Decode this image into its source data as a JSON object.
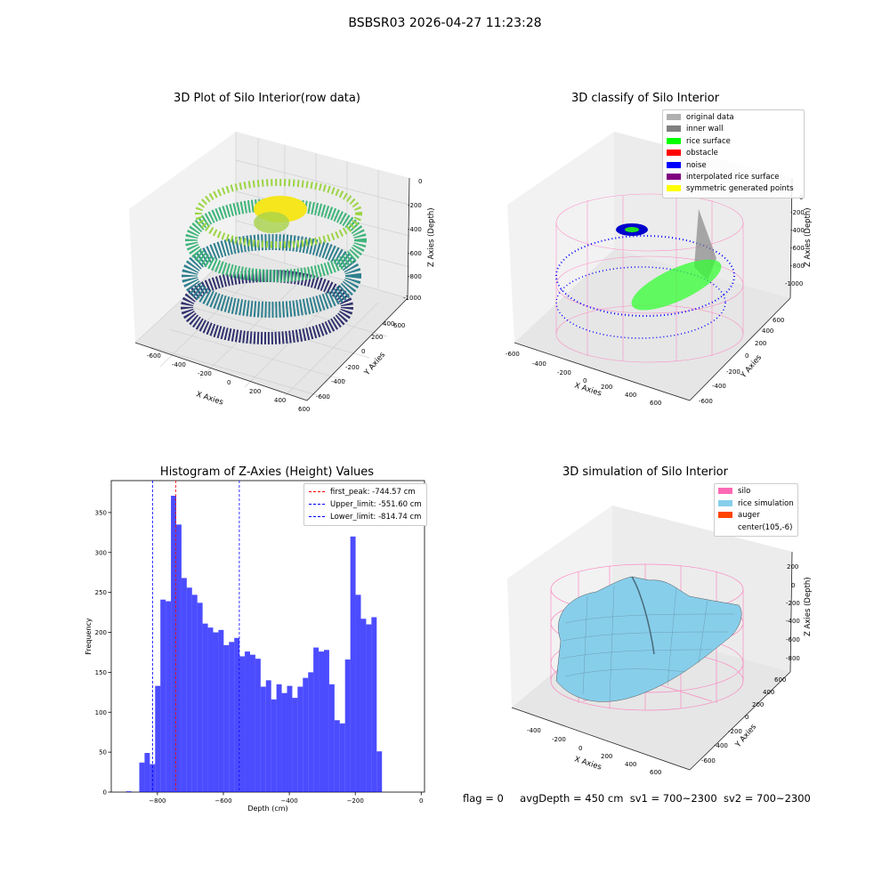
{
  "suptitle": "BSBSR03 2026-04-27 11:23:28",
  "panels": {
    "raw": {
      "title": "3D Plot of Silo Interior(row data)",
      "xlabel": "X Axies",
      "ylabel": "Y Axies",
      "zlabel": "Z Axies (Depth)",
      "xticks": [
        "-600",
        "-400",
        "-200",
        "0",
        "200",
        "400",
        "600"
      ],
      "yticks": [
        "-600",
        "-400",
        "-200",
        "0",
        "200",
        "400",
        "600"
      ],
      "zticks": [
        "0",
        "-200",
        "-400",
        "-600",
        "-800",
        "-1000"
      ]
    },
    "classify": {
      "title": "3D classify of Silo Interior",
      "xlabel": "X Axies",
      "ylabel": "Y Axies",
      "zlabel": "Z Axies (Depth)",
      "xticks": [
        "-600",
        "-400",
        "-200",
        "0",
        "200",
        "400",
        "600"
      ],
      "yticks": [
        "-600",
        "-400",
        "-200",
        "0",
        "200",
        "400",
        "600"
      ],
      "zticks": [
        "0",
        "-200",
        "-400",
        "-600",
        "-800",
        "-1000"
      ],
      "legend": [
        {
          "label": "original data",
          "color": "#b0b0b0"
        },
        {
          "label": "inner wall",
          "color": "#808080"
        },
        {
          "label": "rice surface",
          "color": "#00ff00"
        },
        {
          "label": "obstacle",
          "color": "#ff0000"
        },
        {
          "label": "noise",
          "color": "#0000ff"
        },
        {
          "label": "interpolated rice surface",
          "color": "#800080"
        },
        {
          "label": "symmetric generated points",
          "color": "#ffff00"
        }
      ]
    },
    "simulation": {
      "title": "3D simulation of Silo Interior",
      "xlabel": "X Axies",
      "ylabel": "Y Axies",
      "zlabel": "Z Axies (Depth)",
      "xticks": [
        "-400",
        "-200",
        "0",
        "200",
        "400",
        "600"
      ],
      "yticks": [
        "-600",
        "-400",
        "-200",
        "0",
        "200",
        "400",
        "600"
      ],
      "zticks": [
        "200",
        "0",
        "-200",
        "-400",
        "-600",
        "-800"
      ],
      "legend": [
        {
          "label": "silo",
          "color": "#ff69b4"
        },
        {
          "label": "rice simulation",
          "color": "#87ceeb"
        },
        {
          "label": "auger",
          "color": "#ff4500"
        },
        {
          "label": "center(105,-6)",
          "color": "#ffffff"
        }
      ]
    }
  },
  "chart_data": {
    "type": "bar",
    "title": "Histogram of Z-Axies (Height) Values",
    "xlabel": "Depth (cm)",
    "ylabel": "Frequency",
    "xlim": [
      -940,
      10
    ],
    "ylim": [
      0,
      390
    ],
    "bar_color": "#0000ff",
    "bin_width": 16,
    "bin_starts": [
      -855,
      -839,
      -823,
      -807,
      -791,
      -775,
      -759,
      -743,
      -727,
      -711,
      -695,
      -679,
      -663,
      -647,
      -631,
      -615,
      -599,
      -583,
      -567,
      -551,
      -535,
      -519,
      -503,
      -487,
      -471,
      -455,
      -439,
      -423,
      -407,
      -391,
      -375,
      -359,
      -343,
      -327,
      -311,
      -295,
      -279,
      -263,
      -247,
      -231,
      -215,
      -199,
      -183,
      -167,
      -151,
      -135,
      -119,
      -103,
      -87,
      -71,
      -55,
      -39
    ],
    "values": [
      37,
      49,
      35,
      133,
      241,
      239,
      371,
      335,
      268,
      256,
      247,
      237,
      211,
      206,
      200,
      203,
      184,
      188,
      193,
      170,
      176,
      172,
      167,
      132,
      140,
      116,
      135,
      124,
      133,
      118,
      132,
      143,
      150,
      181,
      176,
      178,
      135,
      90,
      86,
      166,
      320,
      247,
      217,
      210,
      219,
      51,
      0,
      0,
      0,
      0,
      0,
      0
    ],
    "extra_bar": {
      "start": -895,
      "value": 1
    },
    "xticks": [
      -800,
      -600,
      -400,
      -200,
      0
    ],
    "xtick_labels": [
      "−800",
      "−600",
      "−400",
      "−200",
      "0"
    ],
    "yticks": [
      0,
      50,
      100,
      150,
      200,
      250,
      300,
      350
    ],
    "ytick_labels": [
      "0",
      "50",
      "100",
      "150",
      "200",
      "250",
      "300",
      "350"
    ],
    "lines": [
      {
        "name": "first_peak: -744.57 cm",
        "x": -744.57,
        "color": "#ff0000"
      },
      {
        "name": "Upper_limit: -551.60 cm",
        "x": -551.6,
        "color": "#0000ff"
      },
      {
        "name": "Lower_limit: -814.74 cm",
        "x": -814.74,
        "color": "#0000ff"
      }
    ],
    "legend_position": "upper right"
  },
  "footer": {
    "flag": "flag = 0",
    "avg": "avgDepth = 450 cm",
    "sv1": "sv1 = 700~2300",
    "sv2": "sv2 = 700~2300"
  }
}
